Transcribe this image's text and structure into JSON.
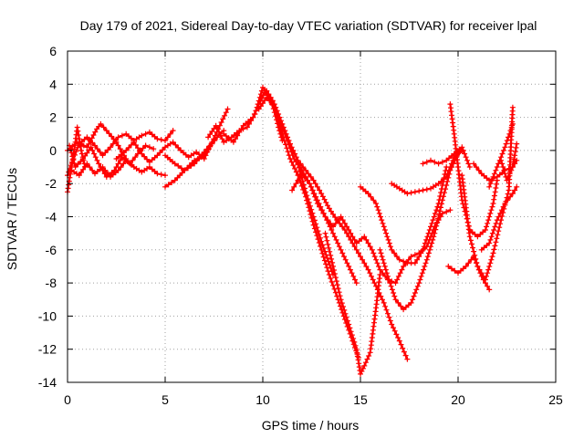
{
  "chart_data": {
    "type": "scatter",
    "title": "Day 179 of 2021, Sidereal Day-to-day VTEC variation (SDTVAR) for receiver lpal",
    "xlabel": "GPS time / hours",
    "ylabel": "SDTVAR / TECUs",
    "xlim": [
      0,
      25
    ],
    "ylim": [
      -14,
      6
    ],
    "xticks": [
      0,
      5,
      10,
      15,
      20,
      25
    ],
    "yticks": [
      -14,
      -12,
      -10,
      -8,
      -6,
      -4,
      -2,
      0,
      2,
      4,
      6
    ],
    "grid": true,
    "marker": "plus",
    "color": "#ff0000",
    "series": [
      {
        "x": [
          0.0,
          0.3,
          0.6,
          1.0,
          1.4,
          1.8,
          2.2,
          2.6,
          3.0,
          3.4,
          3.8,
          4.2,
          4.6,
          5.0,
          5.4
        ],
        "y": [
          -1.5,
          -0.5,
          0.4,
          0.8,
          0.3,
          -0.3,
          0.2,
          0.8,
          1.0,
          0.6,
          0.9,
          1.1,
          0.7,
          0.6,
          1.2
        ]
      },
      {
        "x": [
          0.0,
          0.2,
          0.4,
          0.5,
          0.7,
          0.9
        ],
        "y": [
          -2.5,
          -1.0,
          0.5,
          1.4,
          0.0,
          -1.0
        ]
      },
      {
        "x": [
          0.0,
          0.5,
          1.0,
          1.5,
          1.7,
          2.0,
          2.5,
          3.0
        ],
        "y": [
          0.0,
          0.5,
          0.2,
          1.3,
          1.6,
          1.2,
          0.5,
          -0.5
        ]
      },
      {
        "x": [
          0.2,
          0.6,
          1.0,
          1.4,
          1.8,
          2.2,
          2.6,
          3.0,
          3.4,
          3.8,
          4.2,
          4.6,
          5.0
        ],
        "y": [
          -1.2,
          -1.5,
          -0.8,
          -1.4,
          -1.0,
          -1.6,
          -1.2,
          -0.6,
          -1.0,
          -1.3,
          -1.0,
          -1.4,
          -1.5
        ]
      },
      {
        "x": [
          0.1,
          0.4,
          0.8,
          1.2,
          1.6,
          2.0,
          2.4,
          2.8,
          3.2,
          3.6,
          4.0,
          4.4
        ],
        "y": [
          0.3,
          -1.0,
          -0.5,
          0.2,
          -0.8,
          -1.6,
          -1.2,
          -0.4,
          -0.8,
          -0.2,
          0.3,
          0.1
        ]
      },
      {
        "x": [
          2.5,
          3.0,
          3.4,
          3.8,
          4.2,
          4.6,
          5.0,
          5.4,
          5.8,
          6.2,
          6.6,
          7.0,
          7.4,
          7.8,
          8.2
        ],
        "y": [
          -0.5,
          0.0,
          0.5,
          -0.2,
          -0.7,
          -0.3,
          0.2,
          0.5,
          0.0,
          -0.4,
          -0.1,
          -0.5,
          0.5,
          1.5,
          2.5
        ]
      },
      {
        "x": [
          5.0,
          5.5,
          6.0,
          6.5,
          7.0,
          7.4,
          7.8,
          8.0
        ],
        "y": [
          -2.2,
          -1.8,
          -1.2,
          -0.6,
          -0.3,
          0.4,
          1.0,
          1.2
        ]
      },
      {
        "x": [
          5.0,
          5.5,
          6.0,
          6.5,
          7.0,
          7.5
        ],
        "y": [
          -0.3,
          -0.8,
          -1.2,
          -0.8,
          -0.1,
          0.6
        ]
      },
      {
        "x": [
          7.2,
          7.6,
          8.0,
          8.4,
          8.8,
          9.2,
          9.6,
          10.0,
          10.4,
          10.8,
          11.0
        ],
        "y": [
          0.8,
          1.5,
          0.5,
          0.8,
          1.2,
          1.4,
          2.2,
          3.8,
          3.2,
          1.4,
          0.6
        ]
      },
      {
        "x": [
          8.0,
          8.5,
          9.0,
          9.5,
          9.8,
          10.1,
          10.5,
          10.8,
          11.2,
          11.6,
          12.0,
          12.4,
          12.8,
          13.2,
          13.6,
          14.0,
          14.4,
          14.8
        ],
        "y": [
          1.0,
          0.5,
          1.5,
          2.0,
          2.8,
          3.5,
          3.0,
          2.0,
          0.8,
          -0.5,
          -1.2,
          -2.0,
          -3.2,
          -4.0,
          -5.0,
          -6.0,
          -7.0,
          -8.0
        ]
      },
      {
        "x": [
          9.8,
          10.2,
          10.6,
          11.0,
          11.4,
          11.8,
          12.2,
          12.6,
          13.0,
          13.4,
          13.8,
          14.2,
          14.6,
          14.9
        ],
        "y": [
          2.5,
          3.2,
          2.6,
          1.0,
          -0.5,
          -1.5,
          -2.8,
          -4.5,
          -6.0,
          -7.5,
          -8.8,
          -10.2,
          -11.5,
          -12.5
        ]
      },
      {
        "x": [
          10.2,
          10.6,
          11.0,
          11.4,
          11.8,
          12.2,
          12.6,
          13.0,
          13.4,
          13.8,
          14.2,
          14.6,
          15.0,
          15.4,
          15.8,
          16.2,
          16.6,
          17.0,
          17.4
        ],
        "y": [
          3.6,
          2.8,
          1.6,
          0.4,
          -0.6,
          -1.2,
          -1.8,
          -2.6,
          -3.5,
          -4.2,
          -4.8,
          -5.6,
          -6.4,
          -7.2,
          -8.2,
          -9.2,
          -10.5,
          -11.5,
          -12.6
        ]
      },
      {
        "x": [
          11.8,
          12.2,
          12.6,
          13.0,
          13.3,
          13.6
        ],
        "y": [
          -0.8,
          -2.5,
          -4.0,
          -5.5,
          -6.5,
          -7.5
        ]
      },
      {
        "x": [
          11.5,
          12.0,
          12.4,
          12.8,
          13.2,
          13.6,
          14.0,
          14.4,
          14.8,
          15.2,
          15.6,
          16.0,
          16.4,
          16.8,
          17.2,
          17.6,
          18.0,
          18.4,
          18.8,
          19.2,
          19.6
        ],
        "y": [
          -2.4,
          -1.4,
          -2.0,
          -3.0,
          -4.0,
          -4.6,
          -4.0,
          -4.8,
          -5.6,
          -5.2,
          -6.0,
          -7.2,
          -7.8,
          -8.0,
          -7.0,
          -6.4,
          -6.2,
          -5.8,
          -4.6,
          -3.8,
          -3.6
        ]
      },
      {
        "x": [
          13.2,
          13.6,
          14.0,
          14.4,
          14.8,
          15.0,
          15.2,
          15.5,
          15.8,
          16.0
        ],
        "y": [
          -5.0,
          -7.0,
          -9.0,
          -10.5,
          -12.0,
          -13.5,
          -13.0,
          -12.2,
          -9.5,
          -7.5
        ]
      },
      {
        "x": [
          15.0,
          15.4,
          15.8,
          16.2,
          16.6,
          17.0,
          17.4,
          17.8,
          18.2,
          18.6,
          19.0,
          19.4
        ],
        "y": [
          -2.2,
          -2.6,
          -3.2,
          -4.6,
          -6.0,
          -6.6,
          -6.8,
          -6.8,
          -6.0,
          -4.6,
          -3.2,
          -1.0
        ]
      },
      {
        "x": [
          16.0,
          16.4,
          16.8,
          17.2,
          17.6,
          18.0,
          18.4,
          18.8,
          19.2,
          19.6,
          20.0
        ],
        "y": [
          -6.0,
          -7.6,
          -9.0,
          -9.6,
          -9.2,
          -8.0,
          -6.6,
          -5.0,
          -3.0,
          -1.2,
          -0.2
        ]
      },
      {
        "x": [
          16.6,
          17.0,
          17.4,
          17.8,
          18.2,
          18.6,
          19.0,
          19.4,
          19.8,
          20.2
        ],
        "y": [
          -2.0,
          -2.3,
          -2.6,
          -2.5,
          -2.4,
          -2.3,
          -2.0,
          -1.6,
          -0.4,
          0.0
        ]
      },
      {
        "x": [
          18.2,
          18.6,
          19.0,
          19.4,
          19.8,
          20.2,
          20.6
        ],
        "y": [
          -0.8,
          -0.6,
          -0.8,
          -0.6,
          -0.2,
          0.2,
          -1.0
        ]
      },
      {
        "x": [
          19.6,
          19.8,
          20.0,
          20.2,
          20.6,
          21.0,
          21.4,
          21.8,
          22.0
        ],
        "y": [
          2.8,
          1.0,
          -1.0,
          -3.0,
          -4.8,
          -5.2,
          -4.8,
          -3.2,
          -1.8
        ]
      },
      {
        "x": [
          19.5,
          20.0,
          20.4,
          20.8,
          21.2,
          21.6
        ],
        "y": [
          -7.0,
          -7.4,
          -7.0,
          -6.4,
          -7.6,
          -8.4
        ]
      },
      {
        "x": [
          20.8,
          21.2,
          21.6,
          22.0,
          22.4,
          22.8,
          23.0
        ],
        "y": [
          -0.8,
          -1.4,
          -1.8,
          -1.6,
          -1.2,
          -1.0,
          -0.6
        ]
      },
      {
        "x": [
          20.2,
          20.6,
          21.0,
          21.4,
          21.8,
          22.2,
          22.6,
          22.8
        ],
        "y": [
          -1.5,
          -5.2,
          -7.0,
          -7.8,
          -6.2,
          -4.2,
          -2.4,
          2.6
        ]
      },
      {
        "x": [
          21.2,
          21.6,
          22.0,
          22.4,
          22.8,
          23.0
        ],
        "y": [
          -6.0,
          -5.6,
          -4.2,
          -3.2,
          -2.6,
          -2.2
        ]
      },
      {
        "x": [
          21.6,
          22.0,
          22.4,
          22.8
        ],
        "y": [
          -2.2,
          -1.0,
          0.2,
          1.6
        ]
      },
      {
        "x": [
          22.2,
          22.5,
          22.8,
          23.0
        ],
        "y": [
          -0.6,
          -1.8,
          -1.0,
          0.4
        ]
      }
    ]
  }
}
